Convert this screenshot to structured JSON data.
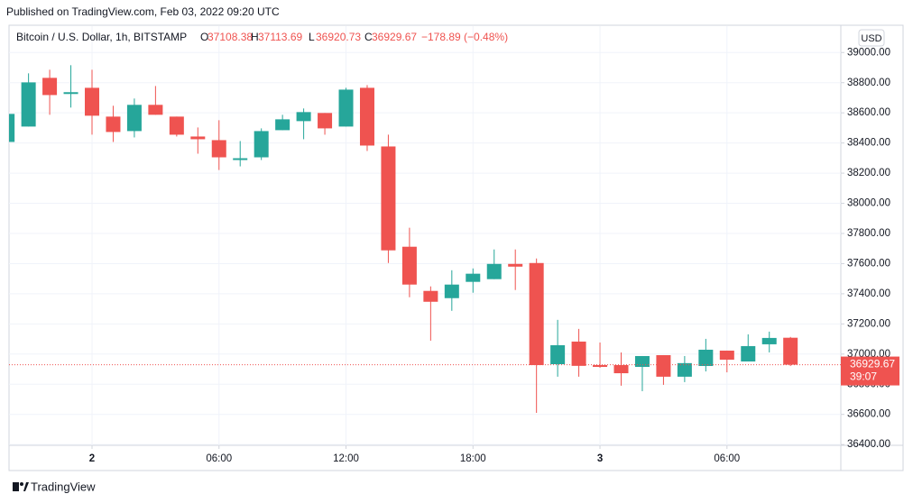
{
  "chart_data": {
    "type": "candlestick",
    "published": "Published on TradingView.com, Feb 03, 2022 09:20 UTC",
    "title": "Bitcoin / U.S. Dollar, 1h, BITSTAMP",
    "legend_keys": [
      "O",
      "H",
      "L",
      "C"
    ],
    "change": "−178.89 (−0.48%)",
    "currency": "USD",
    "countdown": "39:07",
    "watermark": "TradingView",
    "up_color": "#26a69a",
    "down_color": "#ef5350",
    "grid": true,
    "x": [
      null,
      null,
      null,
      null,
      "2",
      null,
      null,
      null,
      null,
      null,
      "06:00",
      null,
      null,
      null,
      null,
      null,
      "12:00",
      null,
      null,
      null,
      null,
      null,
      "18:00",
      null,
      null,
      null,
      null,
      null,
      "3",
      null,
      null,
      null,
      null,
      null,
      "06:00",
      null,
      null,
      null
    ],
    "open": [
      38407,
      38509,
      38832,
      38725,
      38766,
      38575,
      38479,
      38653,
      38575,
      38443,
      38419,
      38287,
      38305,
      38485,
      38545,
      38599,
      38509,
      38766,
      38377,
      37712,
      37419,
      37371,
      37479,
      37497,
      37598,
      37604,
      36933,
      37083,
      36927,
      36927,
      36915,
      36993,
      36850,
      36921,
      37023,
      36951,
      37065,
      37108.38
    ],
    "high": [
      38600,
      38862,
      38886,
      38916,
      38886,
      38647,
      38695,
      38778,
      38575,
      38503,
      38551,
      38413,
      38497,
      38587,
      38629,
      38599,
      38766,
      38784,
      38455,
      37838,
      37449,
      37556,
      37568,
      37694,
      37694,
      37634,
      37227,
      37167,
      37077,
      37011,
      36987,
      36993,
      36987,
      37101,
      37023,
      37131,
      37149,
      37113.69
    ],
    "low": [
      38400,
      38509,
      38587,
      38635,
      38455,
      38407,
      38437,
      38587,
      38443,
      38329,
      38221,
      38245,
      38287,
      38485,
      38425,
      38455,
      38509,
      38347,
      37604,
      37377,
      37089,
      37287,
      37407,
      37497,
      37425,
      36610,
      36850,
      36850,
      36909,
      36790,
      36754,
      36796,
      36814,
      36885,
      36879,
      36951,
      37011,
      36920.73
    ],
    "close": [
      38593,
      38802,
      38718,
      38737,
      38581,
      38473,
      38653,
      38587,
      38455,
      38425,
      38305,
      38299,
      38479,
      38557,
      38605,
      38497,
      38754,
      38383,
      37688,
      37461,
      37347,
      37461,
      37533,
      37598,
      37580,
      36927,
      37059,
      36922,
      36915,
      36873,
      36987,
      36850,
      36940,
      37029,
      36963,
      37053,
      37107,
      36929.67
    ],
    "ylim": [
      36395,
      39175
    ],
    "yticks": [
      {
        "value": 36400,
        "label": "36400.00"
      },
      {
        "value": 36600,
        "label": "36600.00"
      },
      {
        "value": 36800,
        "label": "36800.00"
      },
      {
        "value": 37000,
        "label": "37000.00"
      },
      {
        "value": 37200,
        "label": "37200.00"
      },
      {
        "value": 37400,
        "label": "37400.00"
      },
      {
        "value": 37600,
        "label": "37600.00"
      },
      {
        "value": 37800,
        "label": "37800.00"
      },
      {
        "value": 38000,
        "label": "38000.00"
      },
      {
        "value": 38200,
        "label": "38200.00"
      },
      {
        "value": 38400,
        "label": "38400.00"
      },
      {
        "value": 38600,
        "label": "38600.00"
      },
      {
        "value": 38800,
        "label": "38800.00"
      },
      {
        "value": 39000,
        "label": "39000.00"
      }
    ]
  }
}
